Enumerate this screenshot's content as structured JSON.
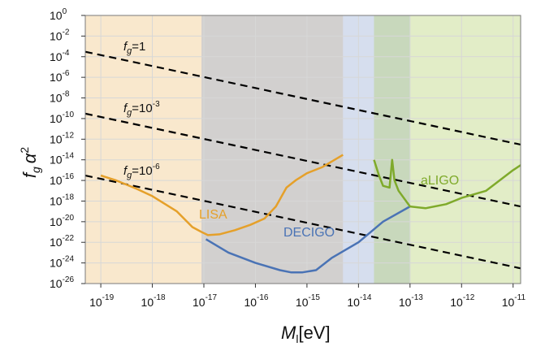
{
  "chart_data": {
    "type": "line",
    "title": "",
    "xlabel": "M_l[eV]",
    "xlabel_main": "M",
    "xlabel_sub": "l",
    "xlabel_unit": "[eV]",
    "ylabel_f": "f",
    "ylabel_g": "g",
    "ylabel_alpha": "α",
    "ylabel_exp": "2",
    "x_scale": "log",
    "y_scale": "log",
    "xlim": [
      5e-20,
      1.4e-11
    ],
    "ylim": [
      1e-26,
      1
    ],
    "grid": true,
    "x_ticks": [
      {
        "base": "10",
        "exp": "-19"
      },
      {
        "base": "10",
        "exp": "-18"
      },
      {
        "base": "10",
        "exp": "-17"
      },
      {
        "base": "10",
        "exp": "-16"
      },
      {
        "base": "10",
        "exp": "-15"
      },
      {
        "base": "10",
        "exp": "-14"
      },
      {
        "base": "10",
        "exp": "-13"
      },
      {
        "base": "10",
        "exp": "-12"
      },
      {
        "base": "10",
        "exp": "-11"
      }
    ],
    "y_ticks": [
      {
        "base": "10",
        "exp": "0"
      },
      {
        "base": "10",
        "exp": "-2"
      },
      {
        "base": "10",
        "exp": "-4"
      },
      {
        "base": "10",
        "exp": "-6"
      },
      {
        "base": "10",
        "exp": "-8"
      },
      {
        "base": "10",
        "exp": "-10"
      },
      {
        "base": "10",
        "exp": "-12"
      },
      {
        "base": "10",
        "exp": "-14"
      },
      {
        "base": "10",
        "exp": "-16"
      },
      {
        "base": "10",
        "exp": "-18"
      },
      {
        "base": "10",
        "exp": "-20"
      },
      {
        "base": "10",
        "exp": "-22"
      },
      {
        "base": "10",
        "exp": "-24"
      },
      {
        "base": "10",
        "exp": "-26"
      }
    ],
    "bands": [
      {
        "name": "LISA band",
        "x_range": [
          5e-20,
          5e-15
        ],
        "color": "#f0c27b",
        "opacity": 0.38
      },
      {
        "name": "DECIGO band",
        "x_range": [
          9e-18,
          1e-13
        ],
        "color": "#93a8d3",
        "opacity": 0.38
      },
      {
        "name": "aLIGO band",
        "x_range": [
          2e-14,
          1.4e-11
        ],
        "color": "#b4cf6d",
        "opacity": 0.38
      }
    ],
    "series": [
      {
        "name": "LISA",
        "color": "#e5a02a",
        "x": [
          1e-19,
          2e-19,
          5e-19,
          1e-18,
          3e-18,
          6e-18,
          9e-18,
          1.2e-17,
          2e-17,
          4e-17,
          8e-17,
          1.5e-16,
          2.5e-16,
          4e-16,
          6e-16,
          1e-15,
          2e-15,
          5e-15
        ],
        "y": [
          3e-16,
          1e-16,
          1.5e-17,
          3e-18,
          1e-19,
          3e-21,
          1e-21,
          5e-22,
          6e-22,
          1.5e-21,
          5e-21,
          2e-20,
          3e-19,
          2e-17,
          1e-16,
          5e-16,
          2e-15,
          3e-14
        ]
      },
      {
        "name": "DECIGO",
        "color": "#4a73b5",
        "x": [
          1.1e-17,
          3e-17,
          1e-16,
          3e-16,
          5e-16,
          8e-16,
          1.5e-15,
          3e-15,
          1e-14,
          3e-14,
          1e-13
        ],
        "y": [
          2e-22,
          1e-23,
          1e-24,
          2e-25,
          1.2e-25,
          1.2e-25,
          2e-25,
          3e-24,
          1e-22,
          1e-20,
          3e-19
        ]
      },
      {
        "name": "aLIGO",
        "color": "#7faa2b",
        "x": [
          2e-14,
          2.5e-14,
          3e-14,
          4e-14,
          4.5e-14,
          5e-14,
          6e-14,
          1e-13,
          2e-13,
          5e-13,
          1e-12,
          3e-12,
          1e-11,
          1.4e-11
        ],
        "y": [
          1e-14,
          3e-16,
          3e-17,
          2e-17,
          1e-14,
          1e-16,
          1e-17,
          3e-19,
          2e-19,
          5e-19,
          2e-18,
          1e-17,
          1e-15,
          3e-15
        ]
      }
    ],
    "fg_lines": [
      {
        "name": "f_g=1",
        "x": [
          5e-20,
          1.4e-11
        ],
        "y": [
          0.0003,
          3e-13
        ]
      },
      {
        "name": "f_g=10^-3",
        "x": [
          5e-20,
          1.4e-11
        ],
        "y": [
          3e-10,
          3e-19
        ]
      },
      {
        "name": "f_g=10^-6",
        "x": [
          5e-20,
          1.4e-11
        ],
        "y": [
          3e-16,
          3e-25
        ]
      }
    ],
    "fg_labels": [
      {
        "main": "f",
        "sub": "g",
        "rest": "=1",
        "exp": ""
      },
      {
        "main": "f",
        "sub": "g",
        "rest": "=10",
        "exp": "-3"
      },
      {
        "main": "f",
        "sub": "g",
        "rest": "=10",
        "exp": "-6"
      }
    ],
    "curve_labels": [
      {
        "text": "LISA",
        "color": "#e5a02a"
      },
      {
        "text": "DECIGO",
        "color": "#4a73b5"
      },
      {
        "text": "aLIGO",
        "color": "#7faa2b"
      }
    ]
  }
}
